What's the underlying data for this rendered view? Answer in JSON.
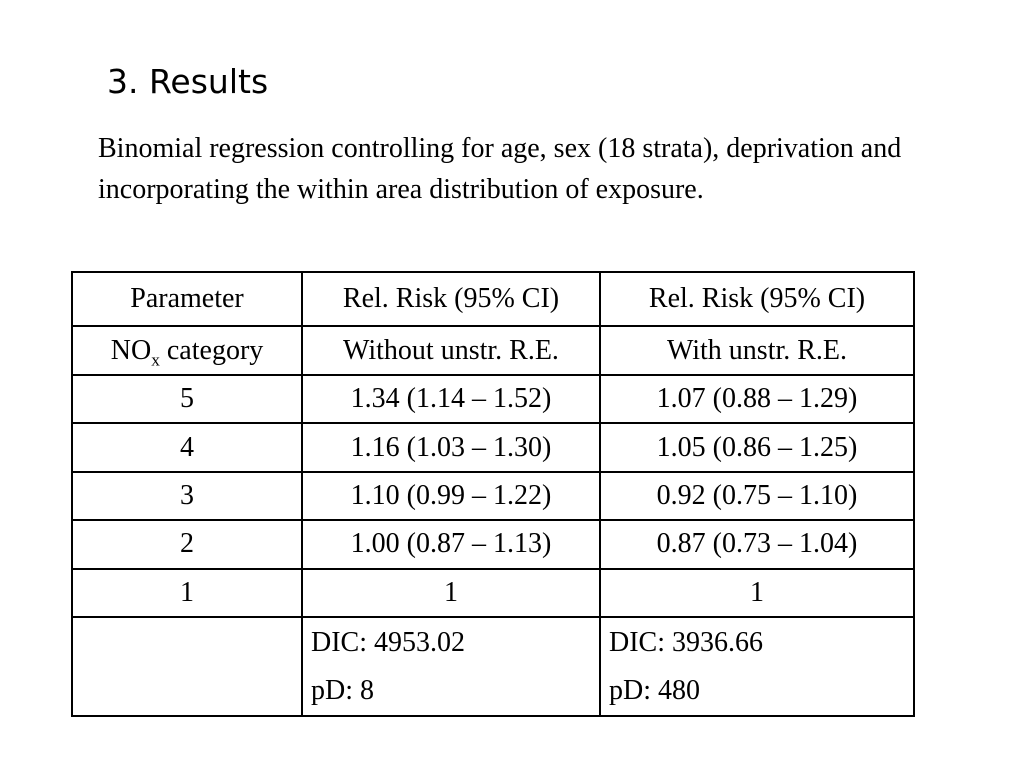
{
  "slide": {
    "title": "3. Results",
    "intro": "Binomial regression controlling for age, sex (18 strata), deprivation and incorporating the within area distribution of exposure."
  },
  "table": {
    "header": [
      "Parameter",
      "Rel. Risk (95% CI)",
      "Rel. Risk (95% CI)"
    ],
    "subheader": {
      "param_main": "NO",
      "param_sub": "x",
      "param_rest": " category",
      "col2": "Without unstr. R.E.",
      "col3": "With unstr. R.E."
    },
    "rows": [
      [
        "5",
        "1.34 (1.14 – 1.52)",
        "1.07 (0.88 – 1.29)"
      ],
      [
        "4",
        "1.16 (1.03 – 1.30)",
        "1.05 (0.86 – 1.25)"
      ],
      [
        "3",
        "1.10 (0.99 – 1.22)",
        "0.92 (0.75 – 1.10)"
      ],
      [
        "2",
        "1.00 (0.87 – 1.13)",
        "0.87 (0.73 – 1.04)"
      ],
      [
        "1",
        "1",
        "1"
      ]
    ],
    "stats": {
      "col1": "",
      "col2": [
        "DIC: 4953.02",
        "pD: 8"
      ],
      "col3": [
        "DIC: 3936.66",
        "pD: 480"
      ]
    }
  }
}
